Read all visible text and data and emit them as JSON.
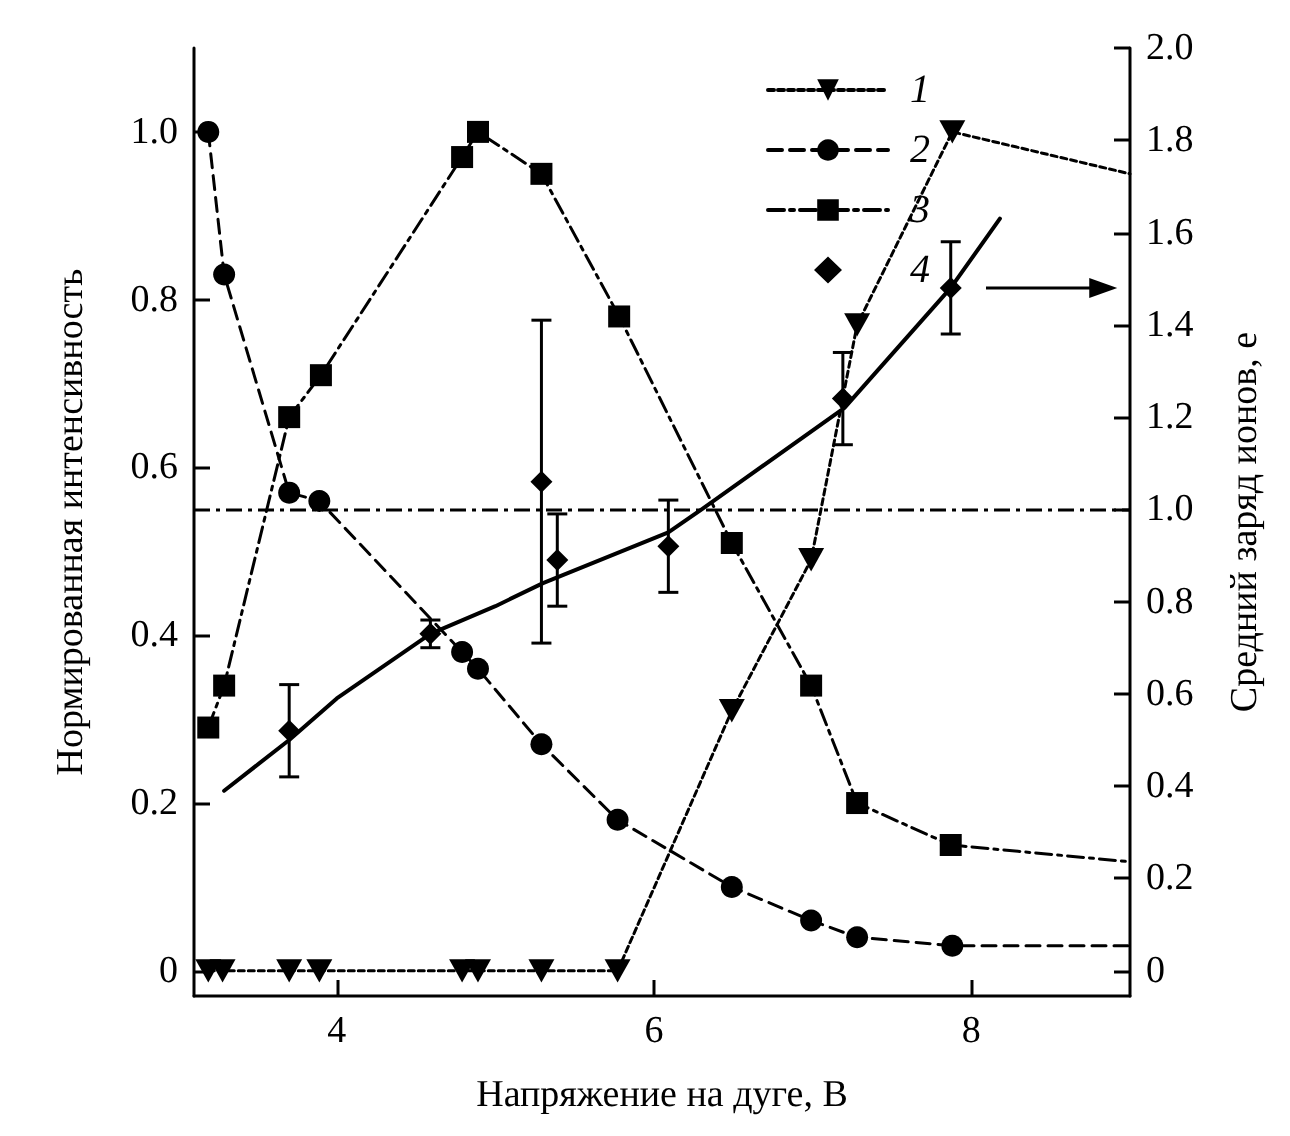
{
  "chart_data": {
    "type": "line",
    "xlabel": "Напряжение на дуге, В",
    "ylabel": "Нормированная интенсивность",
    "y2label": "Средний заряд ионов, e",
    "xlim": [
      3.1,
      9
    ],
    "xticks": [
      4,
      6,
      8
    ],
    "ylim": [
      -0.03,
      1.1
    ],
    "yticks": [
      0,
      0.2,
      0.4,
      0.6,
      0.8,
      {
        "value": 1,
        "label": "1.0"
      }
    ],
    "y2lim": [
      -0.055,
      2.0
    ],
    "y2ticks": [
      0,
      0.2,
      0.4,
      0.6,
      0.8,
      {
        "value": 1,
        "label": "1.0"
      },
      1.2,
      1.4,
      1.6,
      1.8,
      {
        "value": 2,
        "label": "2.0"
      }
    ],
    "legend": "top right",
    "grid": false,
    "series": [
      {
        "name": "1",
        "marker": "triangle",
        "line_style": "dotted",
        "color": "#000000",
        "x": [
          3.19,
          3.28,
          3.7,
          3.89,
          4.79,
          4.89,
          5.29,
          5.77,
          6.49,
          6.99,
          7.28,
          7.88,
          9
        ],
        "values": [
          0,
          0,
          0,
          0,
          0,
          0,
          0,
          0,
          0.31,
          0.49,
          0.77,
          1.0,
          0.95
        ]
      },
      {
        "name": "2",
        "marker": "circle",
        "line_style": "dashed",
        "color": "#000000",
        "x": [
          3.19,
          3.29,
          3.7,
          3.89,
          4.79,
          4.89,
          5.29,
          5.77,
          6.49,
          6.99,
          7.28,
          7.88,
          9
        ],
        "values": [
          1.0,
          0.83,
          0.57,
          0.56,
          0.38,
          0.36,
          0.27,
          0.18,
          0.1,
          0.06,
          0.04,
          0.03,
          0.03
        ]
      },
      {
        "name": "3",
        "marker": "square",
        "line_style": "dashdot",
        "color": "#000000",
        "x": [
          3.19,
          3.29,
          3.7,
          3.9,
          4.79,
          4.89,
          5.29,
          5.78,
          6.49,
          6.99,
          7.28,
          7.87,
          9
        ],
        "values": [
          0.29,
          0.34,
          0.66,
          0.71,
          0.97,
          1.0,
          0.95,
          0.78,
          0.51,
          0.34,
          0.2,
          0.15,
          0.13
        ]
      },
      {
        "name": "4",
        "type": "scatter",
        "marker": "diamond",
        "axis": "y2",
        "color": "#000000",
        "x": [
          3.7,
          4.59,
          5.29,
          5.39,
          6.09,
          7.19,
          7.87
        ],
        "values": [
          0.52,
          0.73,
          1.06,
          0.89,
          0.92,
          1.24,
          1.48
        ],
        "errors": [
          0.1,
          0.03,
          0.35,
          0.1,
          0.1,
          0.1,
          0.1
        ]
      },
      {
        "marker": "none",
        "line_style": "solid",
        "axis": "y2",
        "color": "#000000",
        "x": [
          3.29,
          3.7,
          4.0,
          4.59,
          5.0,
          5.3,
          6.09,
          6.3,
          7.2,
          7.87,
          8.18
        ],
        "values": [
          0.39,
          0.5,
          0.59,
          0.73,
          0.79,
          0.84,
          0.95,
          1.0,
          1.22,
          1.48,
          1.63
        ]
      }
    ],
    "ref_lines": [
      {
        "axis": "y2",
        "value": 1.0,
        "line_style": "dashdot",
        "color": "#000000"
      }
    ]
  }
}
